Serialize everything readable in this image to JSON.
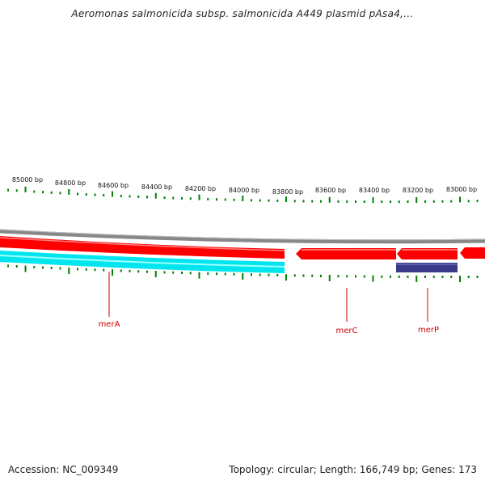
{
  "title": "Aeromonas salmonicida subsp. salmonicida A449 plasmid pAsa4,...",
  "footer": {
    "accession": "Accession: NC_009349",
    "summary": "Topology: circular; Length: 166,749 bp; Genes: 173"
  },
  "ruler": {
    "ticks": [
      "85000 bp",
      "84800 bp",
      "84600 bp",
      "84400 bp",
      "84200 bp",
      "84000 bp",
      "83800 bp",
      "83600 bp",
      "83400 bp",
      "83200 bp",
      "83000 bp"
    ]
  },
  "genes": [
    {
      "name": "merA"
    },
    {
      "name": "merC"
    },
    {
      "name": "merP"
    }
  ],
  "colors": {
    "backbone": "#888888",
    "forward": "#ff0000",
    "reverse": "#00e5ee",
    "protein": "#3a3a8a",
    "ticks": "#008000",
    "labels": "#cc0000"
  }
}
